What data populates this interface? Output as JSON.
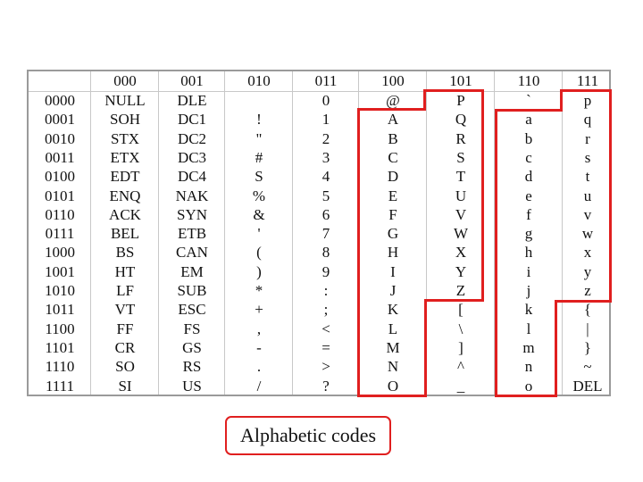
{
  "table": {
    "column_headers": [
      "",
      "000",
      "001",
      "010",
      "011",
      "100",
      "101",
      "110",
      "111"
    ],
    "row_headers": [
      "0000",
      "0001",
      "0010",
      "0011",
      "0100",
      "0101",
      "0110",
      "0111",
      "1000",
      "1001",
      "1010",
      "1011",
      "1100",
      "1101",
      "1110",
      "1111"
    ],
    "columns": [
      [
        "NULL",
        "SOH",
        "STX",
        "ETX",
        "EDT",
        "ENQ",
        "ACK",
        "BEL",
        "BS",
        "HT",
        "LF",
        "VT",
        "FF",
        "CR",
        "SO",
        "SI"
      ],
      [
        "DLE",
        "DC1",
        "DC2",
        "DC3",
        "DC4",
        "NAK",
        "SYN",
        "ETB",
        "CAN",
        "EM",
        "SUB",
        "ESC",
        "FS",
        "GS",
        "RS",
        "US"
      ],
      [
        "",
        "!",
        "\"",
        "#",
        "S",
        "%",
        "&",
        "'",
        "(",
        ")",
        "*",
        "+",
        ",",
        "-",
        ".",
        "/"
      ],
      [
        "0",
        "1",
        "2",
        "3",
        "4",
        "5",
        "6",
        "7",
        "8",
        "9",
        ":",
        ";",
        "<",
        "=",
        ">",
        "?"
      ],
      [
        "@",
        "A",
        "B",
        "C",
        "D",
        "E",
        "F",
        "G",
        "H",
        "I",
        "J",
        "K",
        "L",
        "M",
        "N",
        "O"
      ],
      [
        "P",
        "Q",
        "R",
        "S",
        "T",
        "U",
        "V",
        "W",
        "X",
        "Y",
        "Z",
        "[",
        "\\",
        "]",
        "^",
        "_"
      ],
      [
        "`",
        "a",
        "b",
        "c",
        "d",
        "e",
        "f",
        "g",
        "h",
        "i",
        "j",
        "k",
        "l",
        "m",
        "n",
        "o"
      ],
      [
        "p",
        "q",
        "r",
        "s",
        "t",
        "u",
        "v",
        "w",
        "x",
        "y",
        "z",
        "{",
        "|",
        "}",
        "~",
        "DEL"
      ]
    ]
  },
  "highlight_color": "#e01f1f",
  "caption": "Alphabetic codes"
}
